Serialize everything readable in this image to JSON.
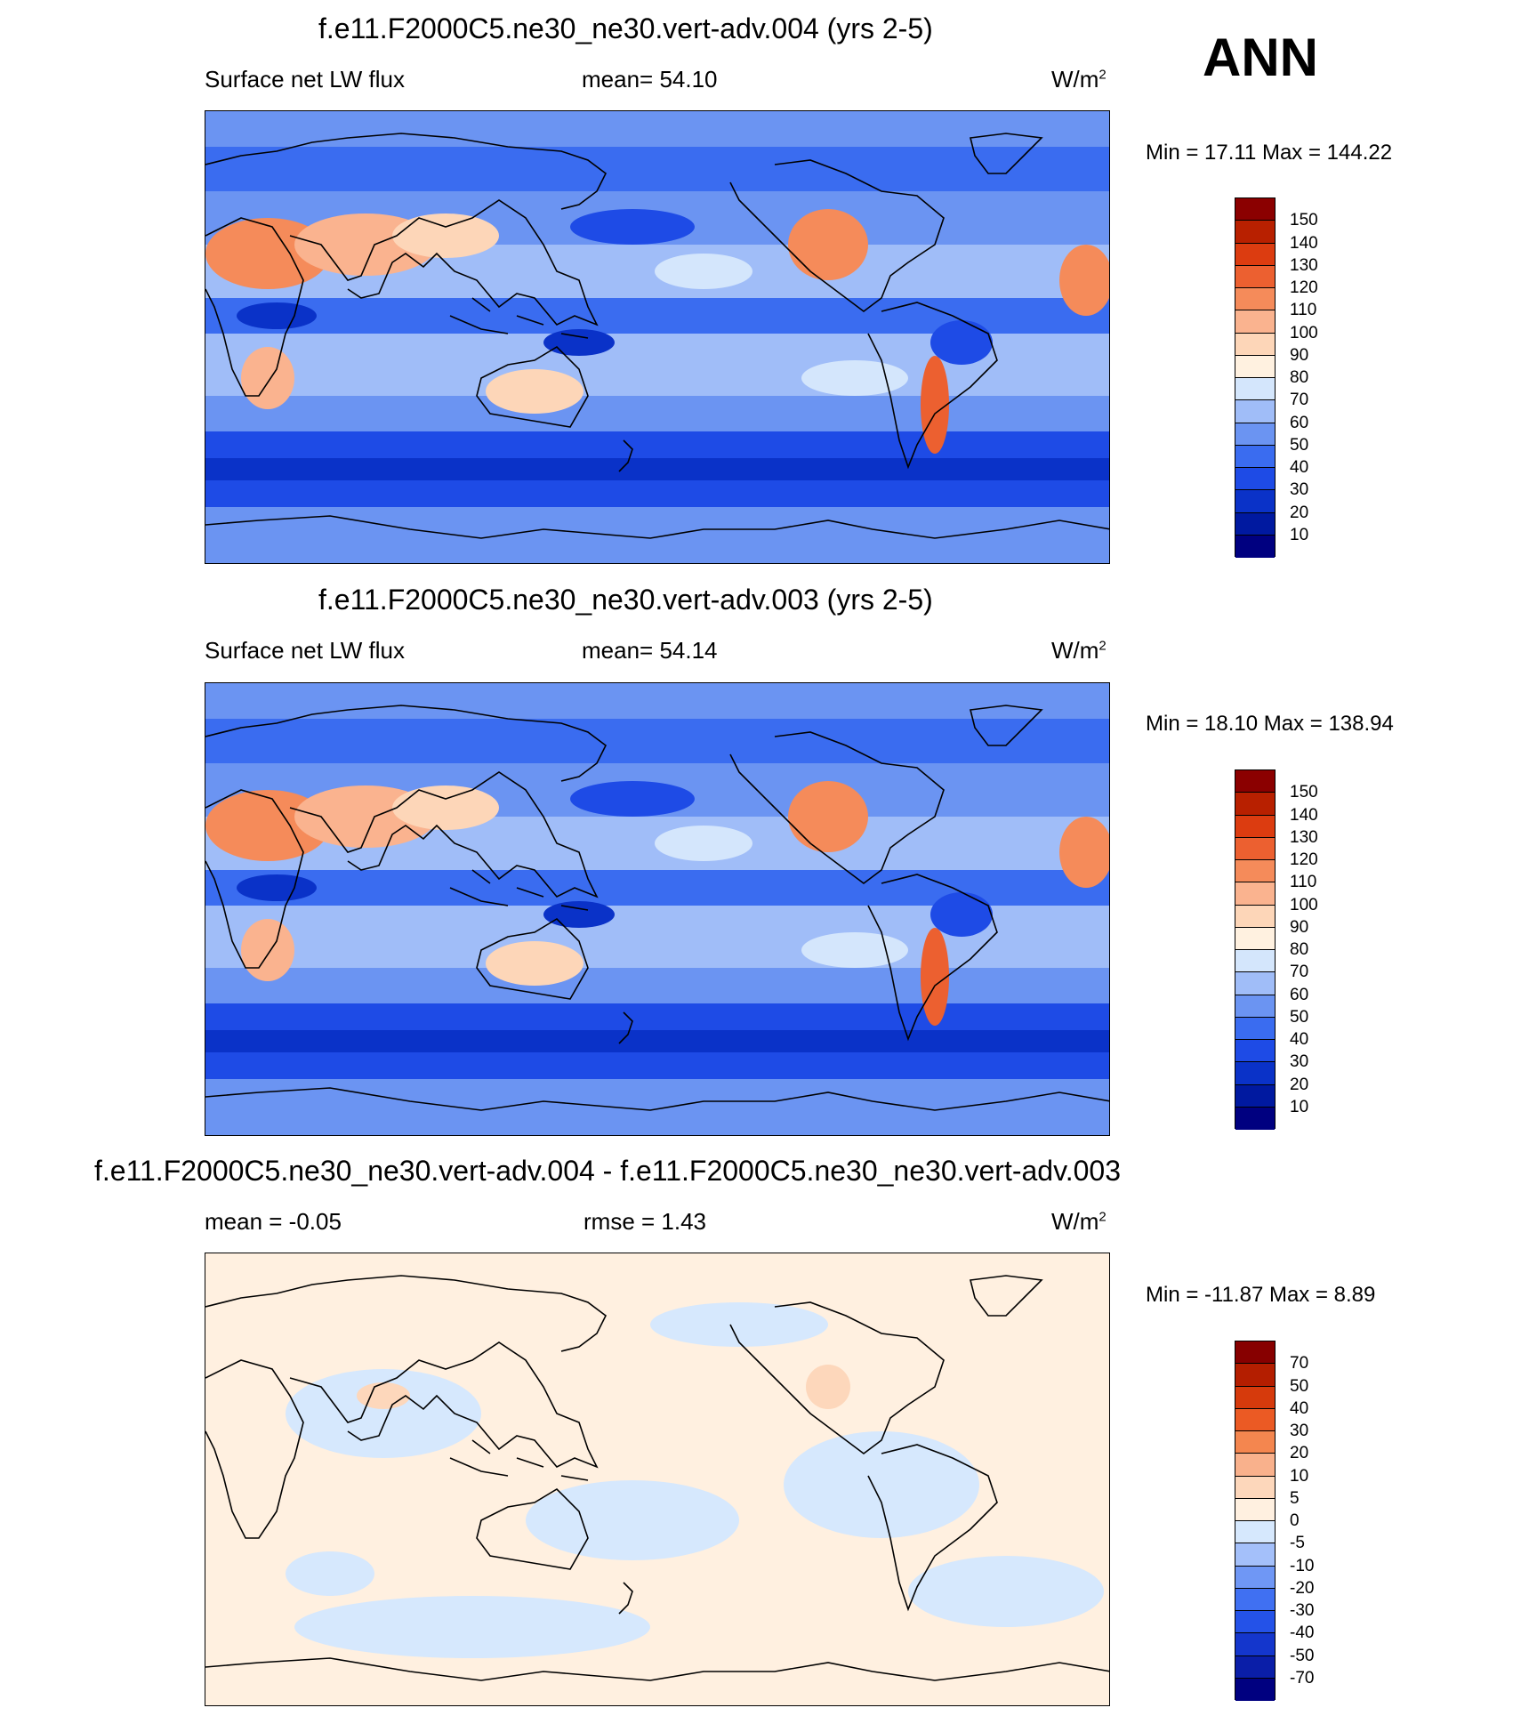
{
  "season": "ANN",
  "colors": {
    "abs_scale": [
      "#000080",
      "#0019a0",
      "#0a32c8",
      "#1e4be6",
      "#3a6cf0",
      "#6b94f2",
      "#a0bdf8",
      "#d4e6fc",
      "#fff1e0",
      "#fdd6b8",
      "#fab38f",
      "#f58b5a",
      "#ec6030",
      "#dc3c10",
      "#b82000",
      "#8b0000"
    ],
    "diff_scale": [
      "#000080",
      "#0a1ea8",
      "#1436cc",
      "#2452e8",
      "#4070f2",
      "#6f97f5",
      "#a4c0fa",
      "#d6e8fd",
      "#fff0e0",
      "#fdd7bb",
      "#f9b18c",
      "#f4864f",
      "#eb5a24",
      "#d63a0c",
      "#b41e00",
      "#870000"
    ]
  },
  "panels": [
    {
      "title": "f.e11.F2000C5.ne30_ne30.vert-adv.004 (yrs 2-5)",
      "left_label": "Surface net LW flux",
      "center_label": "mean=  54.10",
      "units": "W/m",
      "units_sup": "2",
      "minmax": "Min =  17.11 Max = 144.22",
      "levels": [
        "150",
        "140",
        "130",
        "120",
        "110",
        "100",
        "90",
        "80",
        "70",
        "60",
        "50",
        "40",
        "30",
        "20",
        "10"
      ]
    },
    {
      "title": "f.e11.F2000C5.ne30_ne30.vert-adv.003 (yrs 2-5)",
      "left_label": "Surface net LW flux",
      "center_label": "mean=  54.14",
      "units": "W/m",
      "units_sup": "2",
      "minmax": "Min =  18.10 Max = 138.94",
      "levels": [
        "150",
        "140",
        "130",
        "120",
        "110",
        "100",
        "90",
        "80",
        "70",
        "60",
        "50",
        "40",
        "30",
        "20",
        "10"
      ]
    },
    {
      "title": "f.e11.F2000C5.ne30_ne30.vert-adv.004 - f.e11.F2000C5.ne30_ne30.vert-adv.003",
      "left_label": "mean =  -0.05",
      "center_label": "rmse =   1.43",
      "units": "W/m",
      "units_sup": "2",
      "minmax": "Min = -11.87 Max =   8.89",
      "levels": [
        "70",
        "50",
        "40",
        "30",
        "20",
        "10",
        "5",
        "0",
        "-5",
        "-10",
        "-20",
        "-30",
        "-40",
        "-50",
        "-70"
      ]
    }
  ],
  "chart_data": [
    {
      "type": "heatmap",
      "title": "f.e11.F2000C5.ne30_ne30.vert-adv.004 (yrs 2-5)",
      "variable": "Surface net LW flux",
      "units": "W/m2",
      "mean": 54.1,
      "min": 17.11,
      "max": 144.22,
      "contour_levels": [
        10,
        20,
        30,
        40,
        50,
        60,
        70,
        80,
        90,
        100,
        110,
        120,
        130,
        140,
        150
      ]
    },
    {
      "type": "heatmap",
      "title": "f.e11.F2000C5.ne30_ne30.vert-adv.003 (yrs 2-5)",
      "variable": "Surface net LW flux",
      "units": "W/m2",
      "mean": 54.14,
      "min": 18.1,
      "max": 138.94,
      "contour_levels": [
        10,
        20,
        30,
        40,
        50,
        60,
        70,
        80,
        90,
        100,
        110,
        120,
        130,
        140,
        150
      ]
    },
    {
      "type": "heatmap",
      "title": "f.e11.F2000C5.ne30_ne30.vert-adv.004 - f.e11.F2000C5.ne30_ne30.vert-adv.003",
      "units": "W/m2",
      "mean": -0.05,
      "rmse": 1.43,
      "min": -11.87,
      "max": 8.89,
      "contour_levels": [
        -70,
        -50,
        -40,
        -30,
        -20,
        -10,
        -5,
        0,
        5,
        10,
        20,
        30,
        40,
        50,
        70
      ]
    }
  ]
}
